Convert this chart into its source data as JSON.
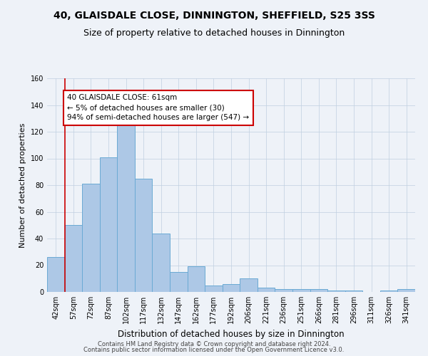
{
  "title": "40, GLAISDALE CLOSE, DINNINGTON, SHEFFIELD, S25 3SS",
  "subtitle": "Size of property relative to detached houses in Dinnington",
  "xlabel": "Distribution of detached houses by size in Dinnington",
  "ylabel": "Number of detached properties",
  "categories": [
    "42sqm",
    "57sqm",
    "72sqm",
    "87sqm",
    "102sqm",
    "117sqm",
    "132sqm",
    "147sqm",
    "162sqm",
    "177sqm",
    "192sqm",
    "206sqm",
    "221sqm",
    "236sqm",
    "251sqm",
    "266sqm",
    "281sqm",
    "296sqm",
    "311sqm",
    "326sqm",
    "341sqm"
  ],
  "values": [
    26,
    50,
    81,
    101,
    131,
    85,
    44,
    15,
    19,
    5,
    6,
    10,
    3,
    2,
    2,
    2,
    1,
    1,
    0,
    1,
    2
  ],
  "bar_color": "#adc8e6",
  "bar_edge_color": "#6aaad4",
  "annotation_text": "40 GLAISDALE CLOSE: 61sqm\n← 5% of detached houses are smaller (30)\n94% of semi-detached houses are larger (547) →",
  "annotation_box_color": "#ffffff",
  "annotation_box_edge": "#cc0000",
  "vline_color": "#cc0000",
  "ylim": [
    0,
    160
  ],
  "yticks": [
    0,
    20,
    40,
    60,
    80,
    100,
    120,
    140,
    160
  ],
  "footer1": "Contains HM Land Registry data © Crown copyright and database right 2024.",
  "footer2": "Contains public sector information licensed under the Open Government Licence v3.0.",
  "bg_color": "#eef2f8",
  "plot_bg_color": "#eef2f8",
  "title_fontsize": 10,
  "subtitle_fontsize": 9,
  "tick_fontsize": 7,
  "ylabel_fontsize": 8,
  "xlabel_fontsize": 8.5,
  "footer_fontsize": 6,
  "annot_fontsize": 7.5
}
